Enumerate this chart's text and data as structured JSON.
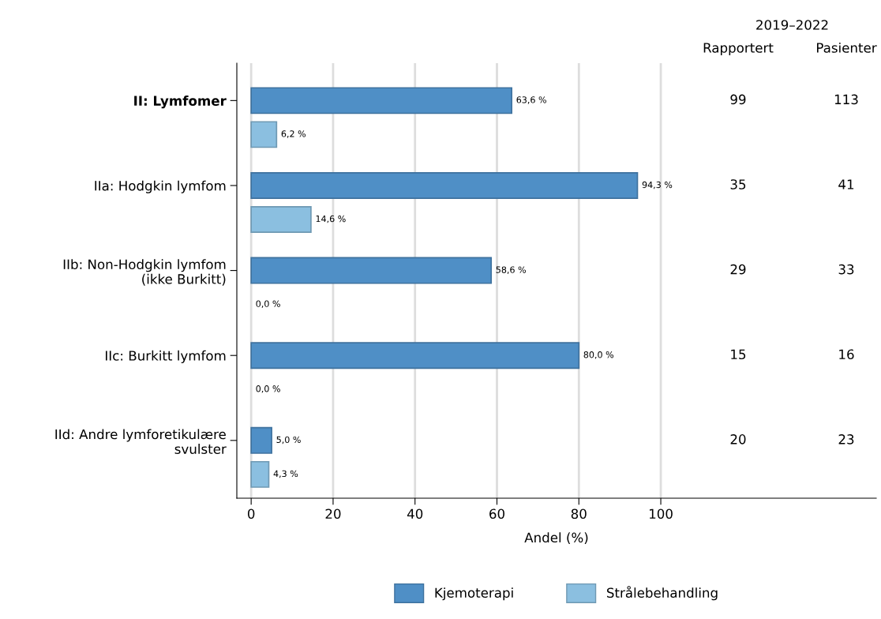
{
  "chart_data": {
    "type": "bar",
    "orientation": "horizontal",
    "xlabel": "Andel (%)",
    "categories": [
      "II: Lymfomer",
      "IIa: Hodgkin lymfom",
      "IIb: Non-Hodgkin lymfom\n(ikke Burkitt)",
      "IIc: Burkitt lymfom",
      "IId: Andre lymforetikulære\nsvulster"
    ],
    "series": [
      {
        "name": "Kjemoterapi",
        "color": "#4f8fc6",
        "values": [
          63.6,
          94.3,
          58.6,
          80.0,
          5.0
        ],
        "value_labels": [
          "63,6 %",
          "94,3 %",
          "58,6 %",
          "80,0 %",
          "5,0 %"
        ]
      },
      {
        "name": "Strålebehandling",
        "color": "#8bbfe0",
        "values": [
          6.2,
          14.6,
          0.0,
          0.0,
          4.3
        ],
        "value_labels": [
          "6,2 %",
          "14,6 %",
          "0,0 %",
          "0,0 %",
          "4,3 %"
        ]
      }
    ],
    "xlim": [
      -3.5,
      152.6
    ],
    "xticks": [
      0,
      20,
      40,
      60,
      80,
      100
    ],
    "grid": "x",
    "legend": "bottom",
    "annotations": [
      "2019–2022",
      "Rapportert",
      "Pasienter",
      "99",
      "113",
      "35",
      "41",
      "29",
      "33",
      "15",
      "16",
      "20",
      "23"
    ]
  }
}
